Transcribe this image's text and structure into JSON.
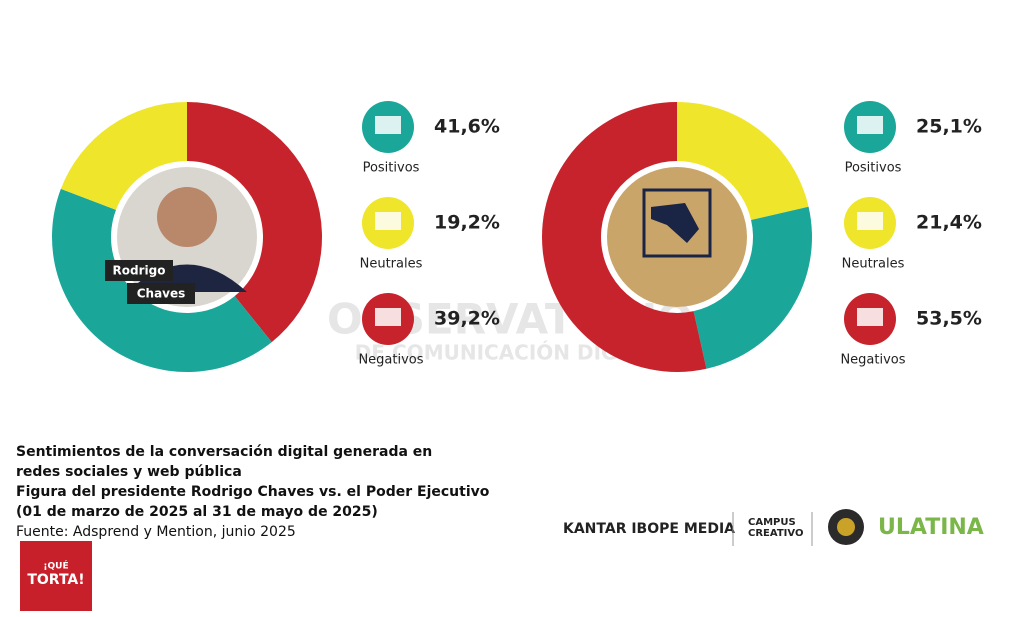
{
  "chart_data": [
    {
      "type": "pie",
      "center_label": [
        "Rodrigo",
        "Chaves"
      ],
      "categories": [
        "Positivos",
        "Neutrales",
        "Negativos"
      ],
      "values": [
        41.6,
        19.2,
        39.2
      ],
      "value_labels": [
        "41,6%",
        "19,2%",
        "39,2%"
      ],
      "colors": [
        "#1aa79a",
        "#efe52b",
        "#c7232d"
      ]
    },
    {
      "type": "pie",
      "categories": [
        "Positivos",
        "Neutrales",
        "Negativos"
      ],
      "values": [
        25.1,
        21.4,
        53.5
      ],
      "value_labels": [
        "25,1%",
        "21,4%",
        "53,5%"
      ],
      "colors": [
        "#1aa79a",
        "#efe52b",
        "#c7232d"
      ]
    }
  ],
  "watermark": [
    "OBSERVATORIO",
    "DE COMUNICACIÓN DIGITAL"
  ],
  "caption": [
    "Sentimientos de la conversación digital generada en",
    "redes sociales y web pública",
    "Figura del presidente Rodrigo Chaves vs. el Poder Ejecutivo",
    "(01 de marzo de 2025 al 31 de mayo de 2025)"
  ],
  "source": "Fuente: Adsprend y Mention, junio 2025",
  "logos": {
    "kantar": "KANTAR IBOPE MEDIA",
    "campus": [
      "CAMPUS",
      "CREATIVO"
    ],
    "ulatina": "ULATINA",
    "torta": [
      "¡QUÉ",
      "TORTA!"
    ]
  }
}
